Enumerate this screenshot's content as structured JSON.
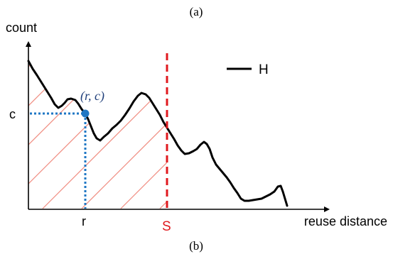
{
  "captions": {
    "top": "(a)",
    "bottom": "(b)"
  },
  "axes": {
    "y_label": "count",
    "x_label": "reuse distance"
  },
  "marks": {
    "c_label": "c",
    "r_label": "r",
    "s_label": "S",
    "point_label": "(r, c)"
  },
  "legend": {
    "label": "H"
  },
  "colors": {
    "curve": "#000000",
    "hatch": "#f08c80",
    "s_line": "#e0191e",
    "point": "#1f77c4",
    "point_label": "#1f3f7a"
  }
}
